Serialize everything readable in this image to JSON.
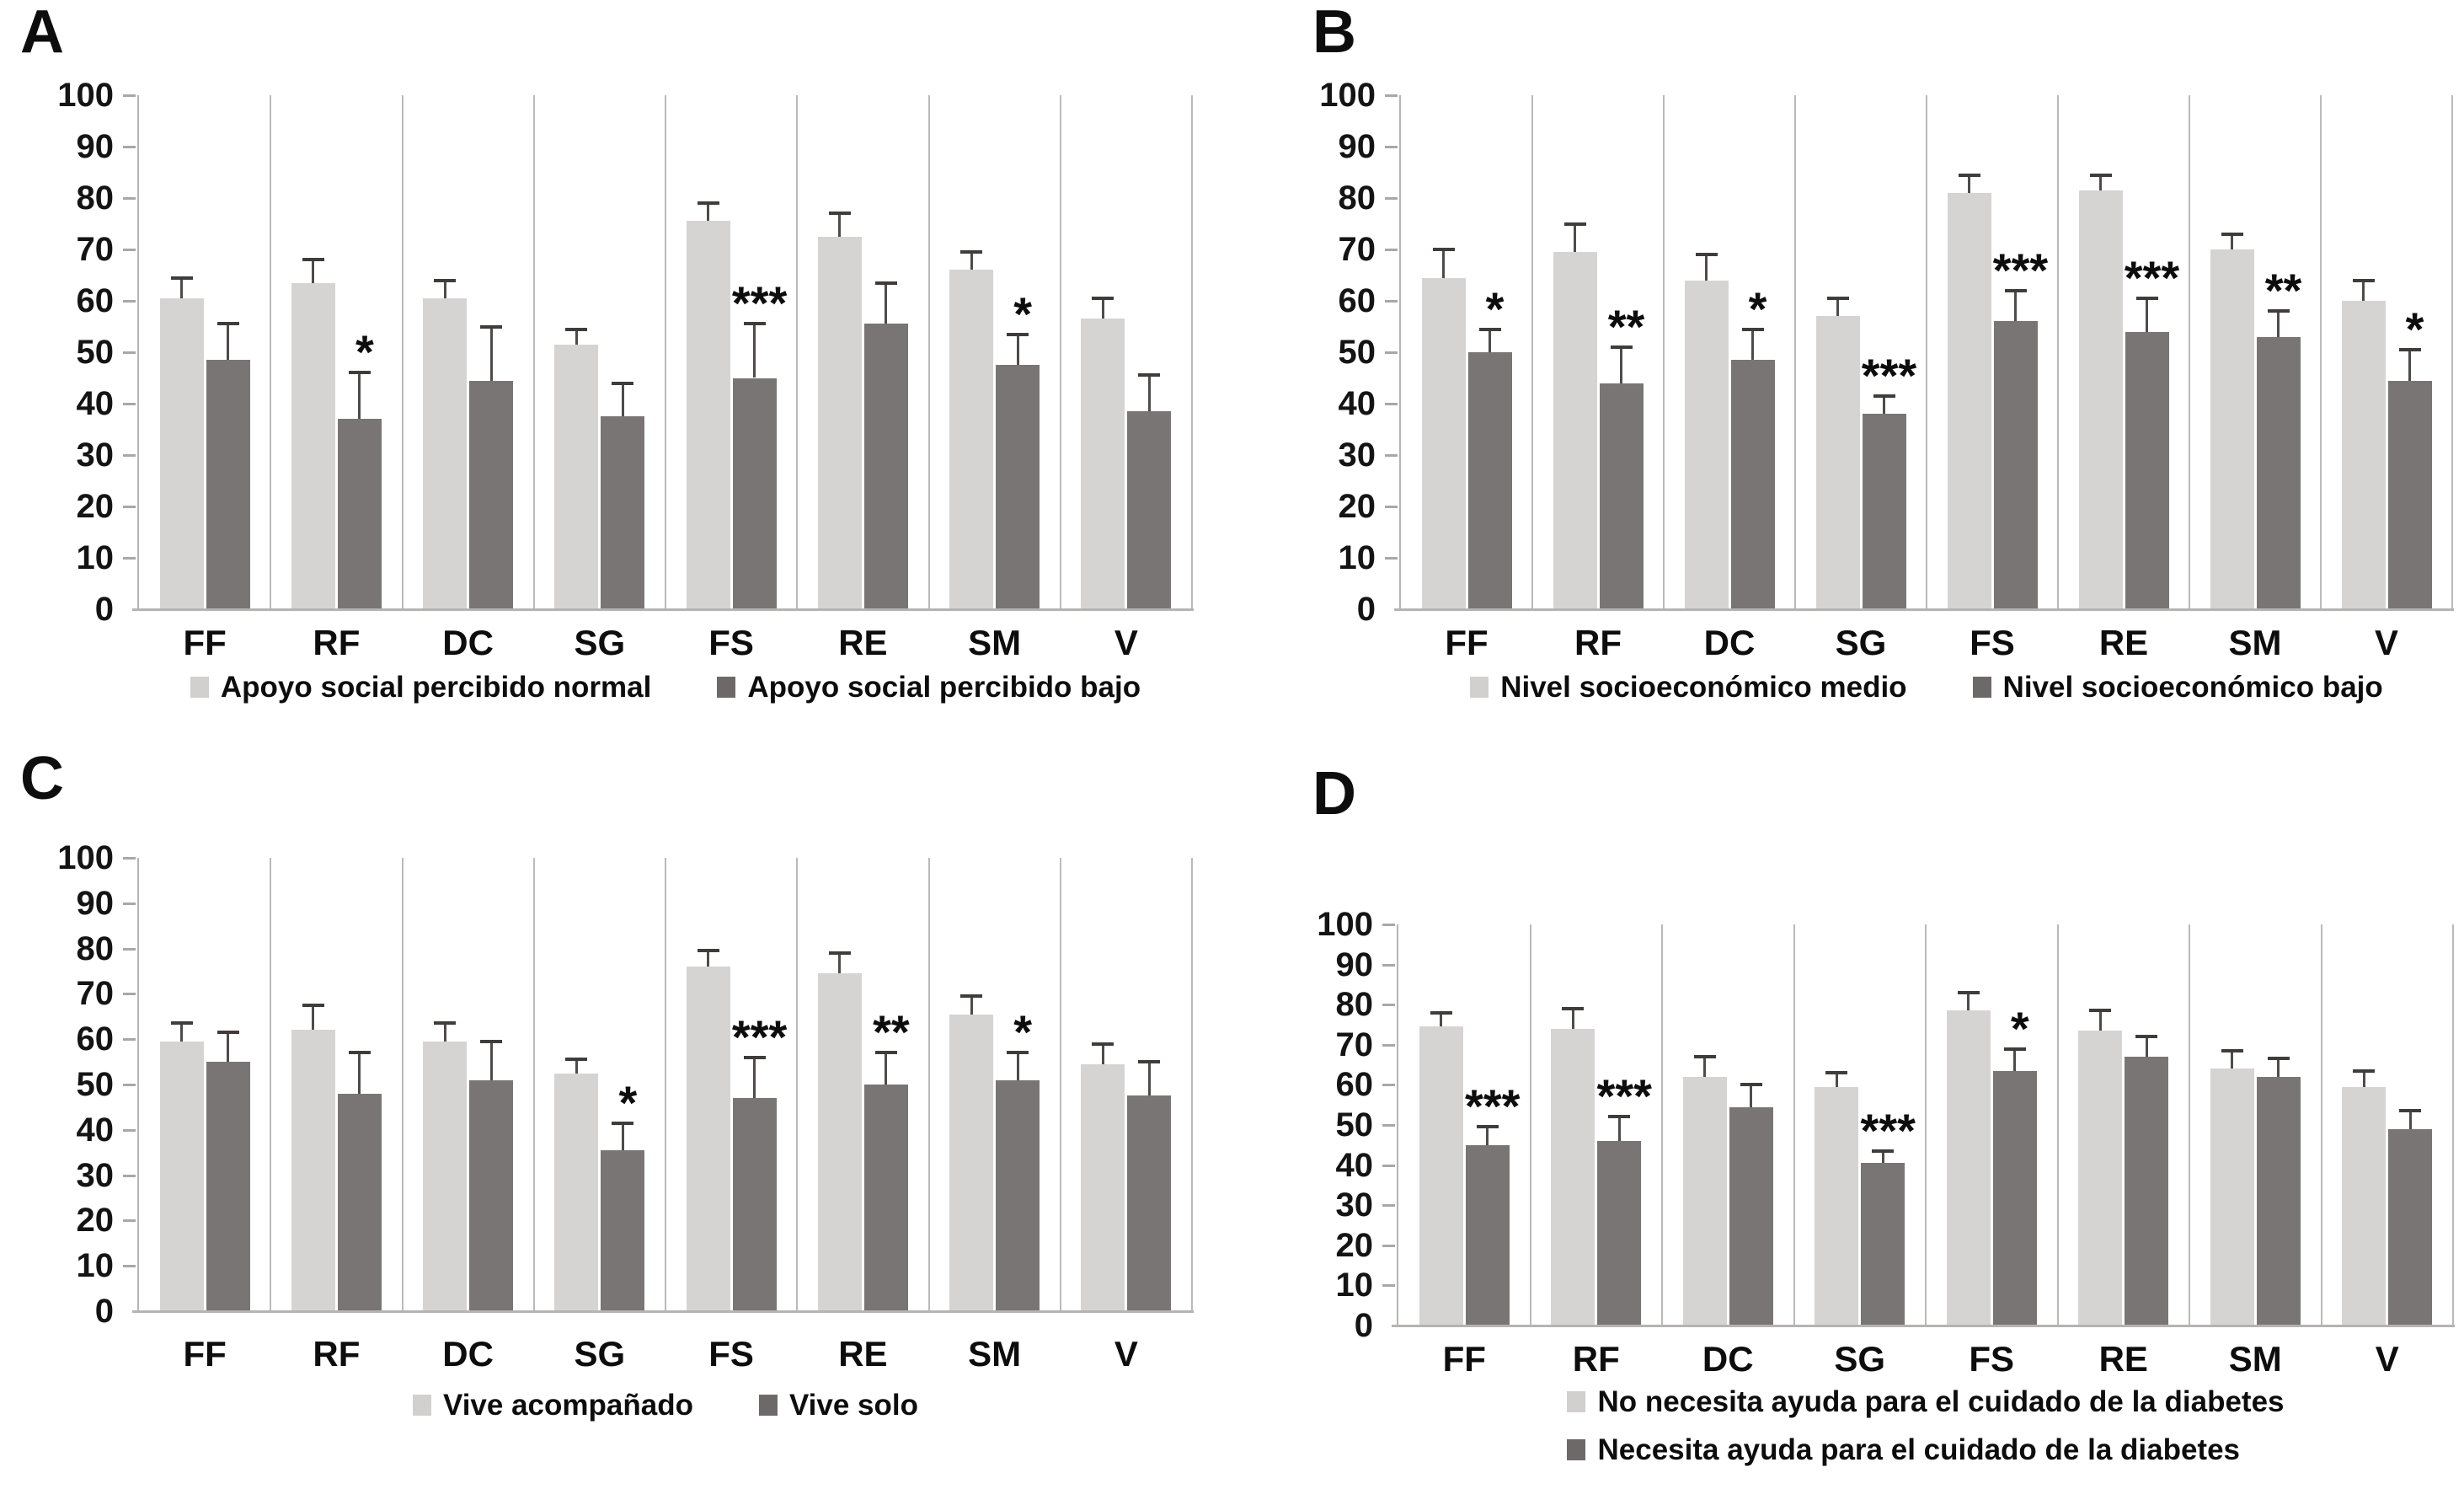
{
  "figure": {
    "background": "#ffffff",
    "y_ticks": [
      100,
      90,
      80,
      70,
      60,
      50,
      40,
      30,
      20,
      10,
      0
    ],
    "colors": {
      "series_light": "#d6d3d3",
      "series_dark": "#7a7575",
      "error_bar": "#4f4b4b",
      "axis": "#b6b3b3",
      "text": "#0d0d0d"
    }
  },
  "chart_data": [
    {
      "panel": "A",
      "type": "bar",
      "title": "",
      "categories": [
        "FF",
        "RF",
        "DC",
        "SG",
        "FS",
        "RE",
        "SM",
        "V"
      ],
      "series": [
        {
          "name": "Apoyo social percibido normal",
          "values": [
            60.5,
            63.5,
            60.5,
            51.5,
            75.5,
            72.5,
            66,
            56.5
          ],
          "errors": [
            4,
            4.5,
            3.5,
            3,
            3.5,
            4.5,
            3.5,
            4
          ]
        },
        {
          "name": "Apoyo social percibido bajo",
          "values": [
            48.5,
            37,
            44.5,
            37.5,
            45,
            55.5,
            47.5,
            38.5
          ],
          "errors": [
            7,
            9,
            10.5,
            6.5,
            10.5,
            8,
            6,
            7
          ]
        }
      ],
      "significance": [
        "",
        "*",
        "",
        "",
        "***",
        "",
        "*",
        ""
      ],
      "ylim": [
        0,
        100
      ],
      "ytick_step": 10,
      "legend_position": "bottom"
    },
    {
      "panel": "B",
      "type": "bar",
      "title": "",
      "categories": [
        "FF",
        "RF",
        "DC",
        "SG",
        "FS",
        "RE",
        "SM",
        "V"
      ],
      "series": [
        {
          "name": "Nivel socioeconómico medio",
          "values": [
            64.5,
            69.5,
            64,
            57,
            81,
            81.5,
            70,
            60
          ],
          "errors": [
            5.5,
            5.5,
            5,
            3.5,
            3.5,
            3,
            3,
            4
          ]
        },
        {
          "name": "Nivel socioeconómico bajo",
          "values": [
            50,
            44,
            48.5,
            38,
            56,
            54,
            53,
            44.5
          ],
          "errors": [
            4.5,
            7,
            6,
            3.5,
            6,
            6.5,
            5,
            6
          ]
        }
      ],
      "significance": [
        "*",
        "**",
        "*",
        "***",
        "***",
        "***",
        "**",
        "*"
      ],
      "ylim": [
        0,
        100
      ],
      "ytick_step": 10,
      "legend_position": "bottom"
    },
    {
      "panel": "C",
      "type": "bar",
      "title": "",
      "categories": [
        "FF",
        "RF",
        "DC",
        "SG",
        "FS",
        "RE",
        "SM",
        "V"
      ],
      "series": [
        {
          "name": "Vive acompañado",
          "values": [
            59.5,
            62,
            59.5,
            52.5,
            76,
            74.5,
            65.5,
            54.5
          ],
          "errors": [
            4,
            5.5,
            4,
            3,
            3.5,
            4.5,
            4,
            4.5
          ]
        },
        {
          "name": "Vive solo",
          "values": [
            55,
            48,
            51,
            35.5,
            47,
            50,
            51,
            47.5
          ],
          "errors": [
            6.5,
            9,
            8.5,
            6,
            9,
            7,
            6,
            7.5
          ]
        }
      ],
      "significance": [
        "",
        "",
        "",
        "*",
        "***",
        "**",
        "*",
        ""
      ],
      "ylim": [
        0,
        100
      ],
      "ytick_step": 10,
      "legend_position": "bottom"
    },
    {
      "panel": "D",
      "type": "bar",
      "title": "",
      "categories": [
        "FF",
        "RF",
        "DC",
        "SG",
        "FS",
        "RE",
        "SM",
        "V"
      ],
      "series": [
        {
          "name": "No necesita ayuda para el cuidado de la diabetes",
          "values": [
            74.5,
            74,
            62,
            59.5,
            78.5,
            73.5,
            64,
            59.5
          ],
          "errors": [
            3.5,
            5,
            5,
            3.5,
            4.5,
            5,
            4.5,
            4
          ]
        },
        {
          "name": "Necesita ayuda para el cuidado de la diabetes",
          "values": [
            45,
            46,
            54.5,
            40.5,
            63.5,
            67,
            62,
            49
          ],
          "errors": [
            4.5,
            6,
            5.5,
            3,
            5.5,
            5,
            4.5,
            4.5
          ]
        }
      ],
      "significance": [
        "***",
        "***",
        "",
        "***",
        "*",
        "",
        "",
        ""
      ],
      "ylim": [
        0,
        100
      ],
      "ytick_step": 10,
      "legend_position": "bottom"
    }
  ]
}
